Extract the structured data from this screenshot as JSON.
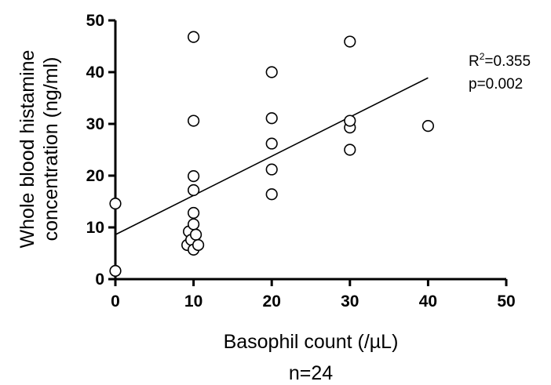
{
  "chart_data": {
    "type": "scatter",
    "xlabel": "Basophil count (/µL)",
    "ylabel_lines": [
      "Whole blood histamine",
      "concentration (ng/ml)"
    ],
    "xlim": [
      0,
      50
    ],
    "ylim": [
      0,
      50
    ],
    "xticks": [
      "0",
      "10",
      "20",
      "30",
      "40",
      "50"
    ],
    "yticks": [
      "0",
      "10",
      "20",
      "30",
      "40",
      "50"
    ],
    "grid": false,
    "points": [
      {
        "x": 0,
        "y": 1.6
      },
      {
        "x": 0,
        "y": 14.6
      },
      {
        "x": 9.2,
        "y": 6.6
      },
      {
        "x": 9.4,
        "y": 9.2
      },
      {
        "x": 9.7,
        "y": 7.6
      },
      {
        "x": 10,
        "y": 5.7
      },
      {
        "x": 10,
        "y": 10.6
      },
      {
        "x": 10,
        "y": 12.8
      },
      {
        "x": 10,
        "y": 17.2
      },
      {
        "x": 10,
        "y": 19.9
      },
      {
        "x": 10,
        "y": 30.6
      },
      {
        "x": 10,
        "y": 46.8
      },
      {
        "x": 10.3,
        "y": 8.6
      },
      {
        "x": 10.6,
        "y": 6.6
      },
      {
        "x": 20,
        "y": 16.4
      },
      {
        "x": 20,
        "y": 21.2
      },
      {
        "x": 20,
        "y": 26.2
      },
      {
        "x": 20,
        "y": 31.1
      },
      {
        "x": 20,
        "y": 40.0
      },
      {
        "x": 30,
        "y": 25.0
      },
      {
        "x": 30,
        "y": 29.3
      },
      {
        "x": 30,
        "y": 30.6
      },
      {
        "x": 30,
        "y": 45.9
      },
      {
        "x": 40,
        "y": 29.6
      }
    ],
    "regression_line": {
      "x": [
        0,
        40
      ],
      "y": [
        8.6,
        38.9
      ]
    },
    "annotation": {
      "r2_prefix": "R",
      "r2_sup": "2",
      "r2_value": "=0.355",
      "p_text": "p=0.002"
    },
    "footnote": "n=24"
  }
}
